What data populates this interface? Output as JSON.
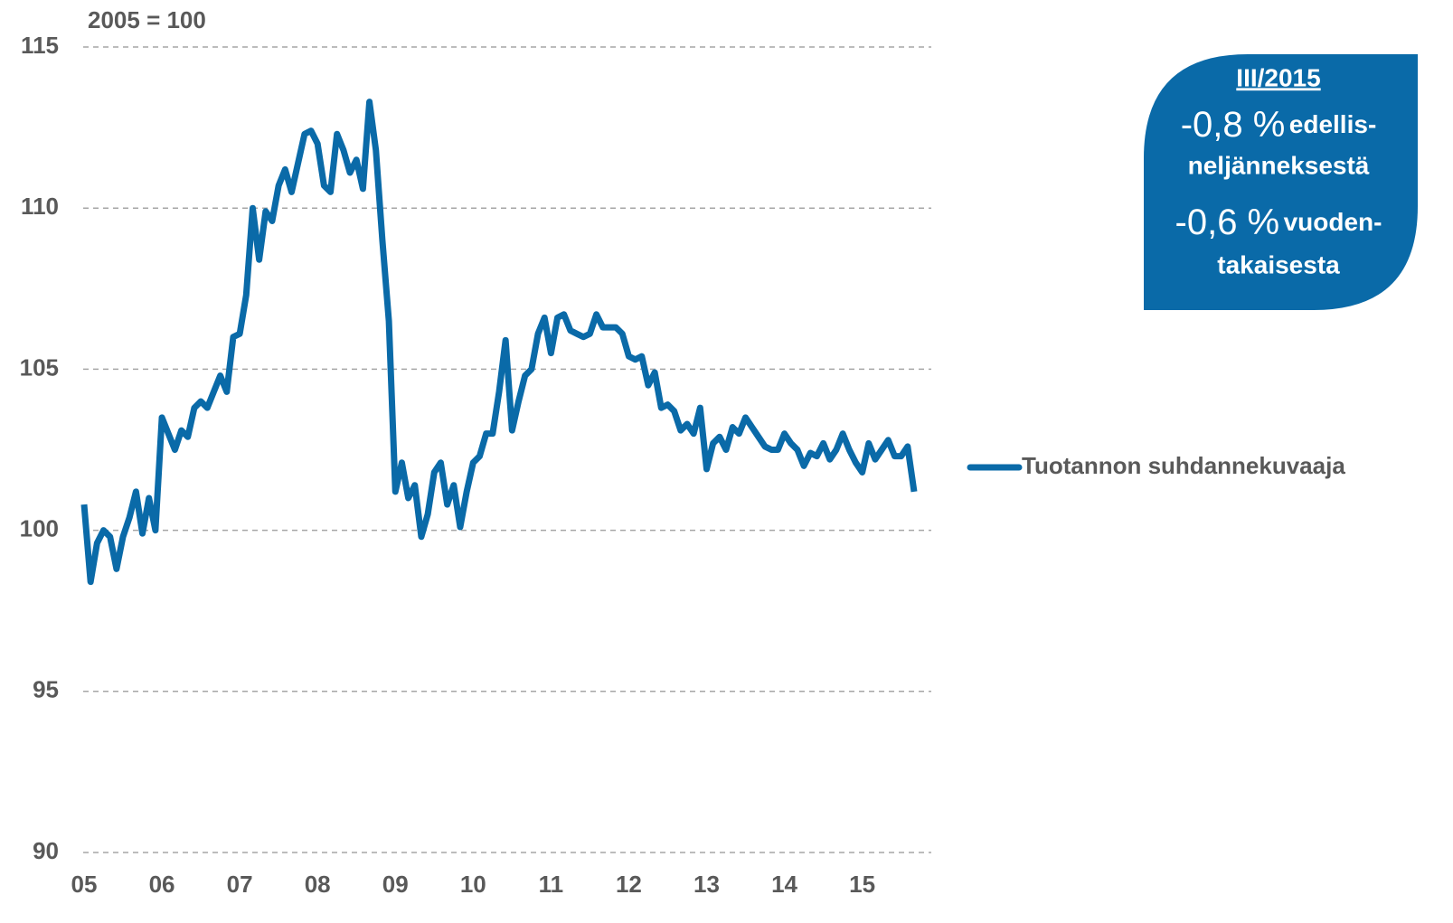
{
  "chart_data": {
    "type": "line",
    "unit_label": "2005 = 100",
    "categories": [
      "05",
      null,
      null,
      null,
      null,
      null,
      null,
      null,
      null,
      null,
      null,
      null,
      "06",
      null,
      null,
      null,
      null,
      null,
      null,
      null,
      null,
      null,
      null,
      null,
      "07",
      null,
      null,
      null,
      null,
      null,
      null,
      null,
      null,
      null,
      null,
      null,
      "08",
      null,
      null,
      null,
      null,
      null,
      null,
      null,
      null,
      null,
      null,
      null,
      "09",
      null,
      null,
      null,
      null,
      null,
      null,
      null,
      null,
      null,
      null,
      null,
      "10",
      null,
      null,
      null,
      null,
      null,
      null,
      null,
      null,
      null,
      null,
      null,
      "11",
      null,
      null,
      null,
      null,
      null,
      null,
      null,
      null,
      null,
      null,
      null,
      "12",
      null,
      null,
      null,
      null,
      null,
      null,
      null,
      null,
      null,
      null,
      null,
      "13",
      null,
      null,
      null,
      null,
      null,
      null,
      null,
      null,
      null,
      null,
      null,
      "14",
      null,
      null,
      null,
      null,
      null,
      null,
      null,
      null,
      null,
      null,
      null,
      "15",
      null,
      null,
      null,
      null,
      null,
      null,
      null,
      null
    ],
    "series": [
      {
        "name": "Tuotannon suhdannekuvaaja",
        "color": "#0a6aa8",
        "values": [
          100.8,
          98.4,
          99.6,
          100.0,
          99.8,
          98.8,
          99.8,
          100.4,
          101.2,
          99.9,
          101.0,
          100.0,
          103.5,
          103.0,
          102.5,
          103.1,
          102.9,
          103.8,
          104.0,
          103.8,
          104.3,
          104.8,
          104.3,
          106.0,
          106.1,
          107.3,
          110.0,
          108.4,
          109.9,
          109.6,
          110.7,
          111.2,
          110.5,
          111.4,
          112.3,
          112.4,
          112.0,
          110.7,
          110.5,
          112.3,
          111.8,
          111.1,
          111.5,
          110.6,
          113.3,
          111.8,
          109.0,
          106.5,
          101.2,
          102.1,
          101.0,
          101.4,
          99.8,
          100.5,
          101.8,
          102.1,
          100.8,
          101.4,
          100.1,
          101.2,
          102.1,
          102.3,
          103.0,
          103.0,
          104.3,
          105.9,
          103.1,
          104.0,
          104.8,
          105.0,
          106.1,
          106.6,
          105.5,
          106.6,
          106.7,
          106.2,
          106.1,
          106.0,
          106.1,
          106.7,
          106.3,
          106.3,
          106.3,
          106.1,
          105.4,
          105.3,
          105.4,
          104.5,
          104.9,
          103.8,
          103.9,
          103.7,
          103.1,
          103.3,
          103.0,
          103.8,
          101.9,
          102.7,
          102.9,
          102.5,
          103.2,
          103.0,
          103.5,
          103.2,
          102.9,
          102.6,
          102.5,
          102.5,
          103.0,
          102.7,
          102.5,
          102.0,
          102.4,
          102.3,
          102.7,
          102.2,
          102.5,
          103.0,
          102.5,
          102.1,
          101.8,
          102.7,
          102.2,
          102.5,
          102.8,
          102.3,
          102.3,
          102.6,
          101.2
        ]
      }
    ],
    "ylim": [
      90,
      115
    ],
    "yticks": [
      90,
      95,
      100,
      105,
      110,
      115
    ],
    "grid": true,
    "legend": "right",
    "annotation": {
      "period": "III/2015",
      "change_1": "-0,8 %",
      "text_1a": "edellis-",
      "text_1b": "neljänneksestä",
      "change_2": "-0,6 %",
      "text_2a": "vuoden-",
      "text_2b": "takaisesta",
      "color": "#0a6aa8"
    }
  }
}
